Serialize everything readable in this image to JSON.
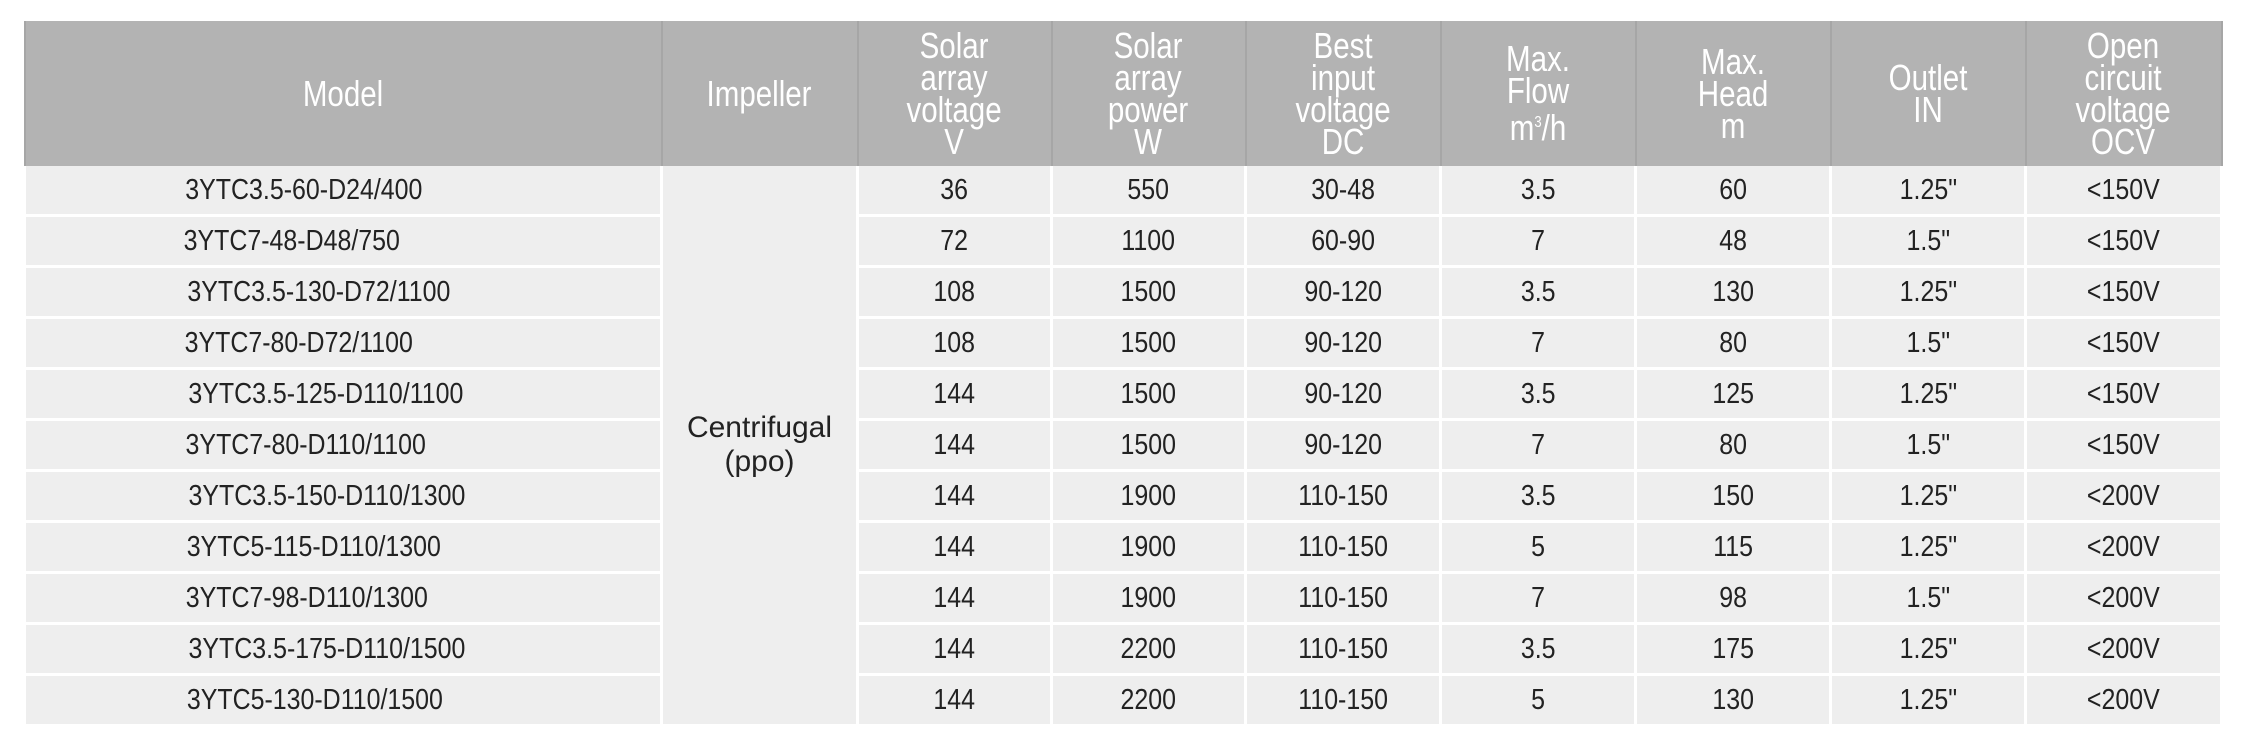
{
  "headers": {
    "model": "Model",
    "impeller": "Impeller",
    "voltage": "Solar\narray\nvoltage\nV",
    "power": "Solar\narray\npower\nW",
    "best_input": "Best\ninput\nvoltage\nDC",
    "flow_a": "Max.\nFlow\nm",
    "flow_sup": "3",
    "flow_b": "/h",
    "head": "Max.\nHead\nm",
    "outlet": "Outlet\nIN",
    "ocv": "Open\ncircuit\nvoltage\nOCV"
  },
  "impeller": {
    "line1": "Centrifugal",
    "line2": "(ppo)"
  },
  "rows": [
    [
      "3YTC3.5-60-D24/400",
      "36",
      "550",
      "30-48",
      "3.5",
      "60",
      "1.25\"",
      "<150V"
    ],
    [
      "3YTC7-48-D48/750",
      "72",
      "1100",
      "60-90",
      "7",
      "48",
      "1.5\"",
      "<150V"
    ],
    [
      "3YTC3.5-130-D72/1100",
      "108",
      "1500",
      "90-120",
      "3.5",
      "130",
      "1.25\"",
      "<150V"
    ],
    [
      "3YTC7-80-D72/1100",
      "108",
      "1500",
      "90-120",
      "7",
      "80",
      "1.5\"",
      "<150V"
    ],
    [
      "3YTC3.5-125-D110/1100",
      "144",
      "1500",
      "90-120",
      "3.5",
      "125",
      "1.25\"",
      "<150V"
    ],
    [
      "3YTC7-80-D110/1100",
      "144",
      "1500",
      "90-120",
      "7",
      "80",
      "1.5\"",
      "<150V"
    ],
    [
      "3YTC3.5-150-D110/1300",
      "144",
      "1900",
      "110-150",
      "3.5",
      "150",
      "1.25\"",
      "<200V"
    ],
    [
      "3YTC5-115-D110/1300",
      "144",
      "1900",
      "110-150",
      "5",
      "115",
      "1.25\"",
      "<200V"
    ],
    [
      "3YTC7-98-D110/1300",
      "144",
      "1900",
      "110-150",
      "7",
      "98",
      "1.5\"",
      "<200V"
    ],
    [
      "3YTC3.5-175-D110/1500",
      "144",
      "2200",
      "110-150",
      "3.5",
      "175",
      "1.25\"",
      "<200V"
    ],
    [
      "3YTC5-130-D110/1500",
      "144",
      "2200",
      "110-150",
      "5",
      "130",
      "1.25\"",
      "<200V"
    ]
  ]
}
